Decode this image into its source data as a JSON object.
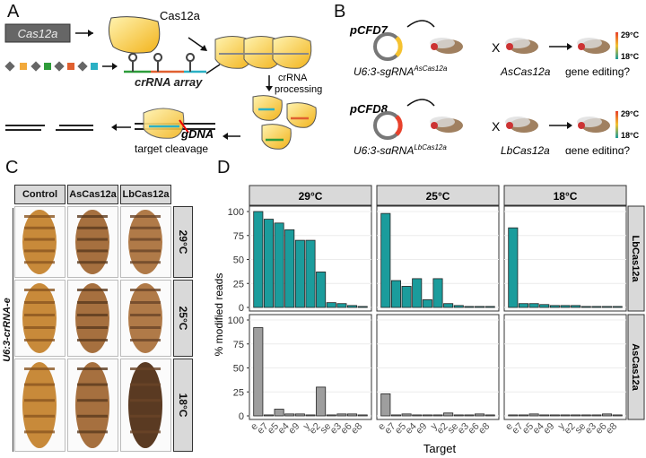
{
  "panel_labels": {
    "a": "A",
    "b": "B",
    "c": "C",
    "d": "D"
  },
  "panel_a": {
    "gene_box": "Cas12a",
    "protein": "Cas12a",
    "crrna_array": "crRNA array",
    "processing": "crRNA\nprocessing",
    "gdna": "gDNA",
    "target_cleavage": "target cleavage"
  },
  "panel_b": {
    "rows": [
      {
        "plasmid": "pCFD7",
        "sgrna_main": "U6:3-sgRNA",
        "sgrna_sup": "AsCas12a",
        "cas_line": "AsCas12a",
        "question": "gene editing?",
        "accent": "#f5c230"
      },
      {
        "plasmid": "pCFD8",
        "sgrna_main": "U6:3-sgRNA",
        "sgrna_sup": "LbCas12a",
        "cas_line": "LbCas12a",
        "question": "gene editing?",
        "accent": "#e8412c"
      }
    ],
    "cross": "X",
    "temp_hot": "29°C",
    "temp_cold": "18°C"
  },
  "panel_c": {
    "columns": [
      "Control",
      "AsCas12a",
      "LbCas12a"
    ],
    "rows": [
      "29°C",
      "25°C",
      "18°C"
    ],
    "side_label": "U6:3-crRNA-e"
  },
  "colors": {
    "teal": "#1b9c9c",
    "grey": "#9e9e9e",
    "strip": "#d9d9d9"
  },
  "chart_data": {
    "type": "bar",
    "ylabel": "% modified reads",
    "xlabel": "Target",
    "ylim": [
      0,
      100
    ],
    "yticks": [
      0,
      25,
      50,
      75,
      100
    ],
    "categories": [
      "e",
      "e7",
      "e5",
      "e4",
      "e9",
      "y",
      "e2",
      "se",
      "e3",
      "e6",
      "e8"
    ],
    "columns": [
      "29°C",
      "25°C",
      "18°C"
    ],
    "rows": [
      "LbCas12a",
      "AsCas12a"
    ],
    "panels": [
      {
        "row": "LbCas12a",
        "col": "29°C",
        "values": [
          100,
          92,
          88,
          81,
          70,
          70,
          37,
          5,
          4,
          2,
          1
        ]
      },
      {
        "row": "LbCas12a",
        "col": "25°C",
        "values": [
          98,
          28,
          22,
          30,
          8,
          30,
          4,
          2,
          1,
          1,
          1
        ]
      },
      {
        "row": "LbCas12a",
        "col": "18°C",
        "values": [
          83,
          4,
          4,
          3,
          2,
          2,
          2,
          1,
          1,
          1,
          1
        ]
      },
      {
        "row": "AsCas12a",
        "col": "29°C",
        "values": [
          92,
          1,
          7,
          2,
          2,
          1,
          30,
          1,
          2,
          2,
          1
        ]
      },
      {
        "row": "AsCas12a",
        "col": "25°C",
        "values": [
          23,
          1,
          2,
          1,
          1,
          1,
          3,
          1,
          1,
          2,
          1
        ]
      },
      {
        "row": "AsCas12a",
        "col": "18°C",
        "values": [
          1,
          1,
          2,
          1,
          1,
          1,
          1,
          1,
          1,
          2,
          1
        ]
      }
    ]
  }
}
